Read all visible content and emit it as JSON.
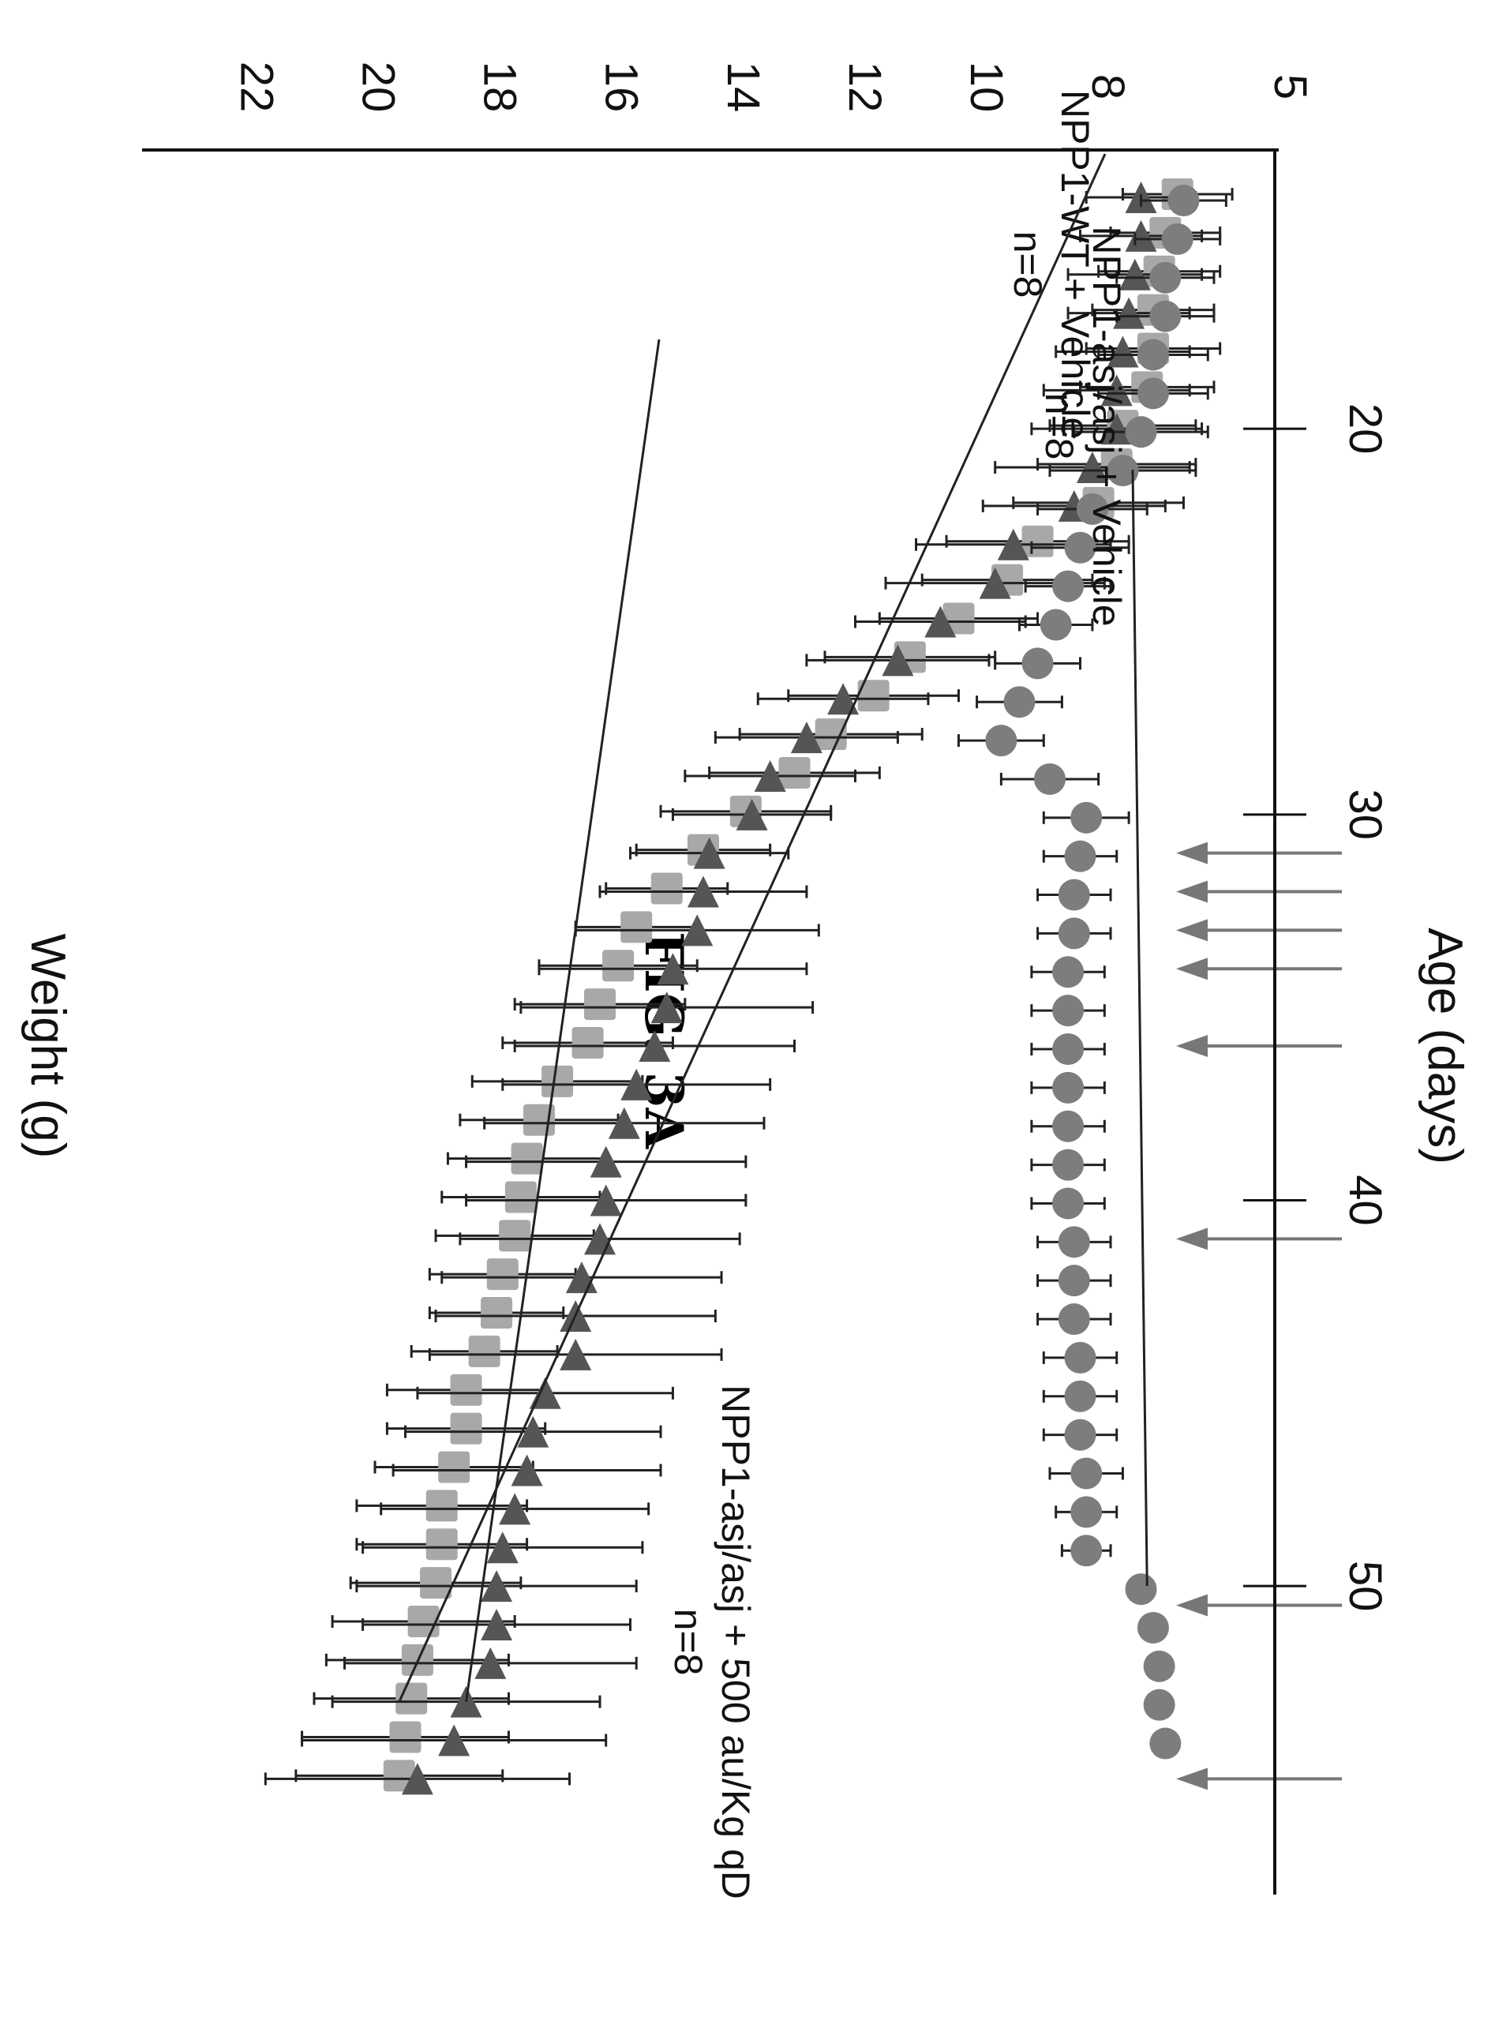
{
  "figure": {
    "label": "FIG. 3A"
  },
  "chart_data": {
    "type": "scatter",
    "xlabel": "Age (days)",
    "ylabel": "Weight (g)",
    "xlim": [
      14,
      58
    ],
    "ylim": [
      5,
      23.5
    ],
    "xticks": [
      20,
      30,
      40,
      50
    ],
    "yticks": [
      5,
      8,
      10,
      12,
      14,
      16,
      18,
      20,
      22
    ],
    "grid": false,
    "legend": "none",
    "series": [
      {
        "marker": "square",
        "color": "#a8a8a8",
        "x": [
          14,
          15,
          16,
          17,
          18,
          19,
          20,
          21,
          22,
          23,
          24,
          25,
          26,
          27,
          28,
          29,
          30,
          31,
          32,
          33,
          34,
          35,
          36,
          37,
          38,
          39,
          40,
          41,
          42,
          43,
          44,
          45,
          46,
          47,
          48,
          49,
          50,
          51,
          52,
          53,
          54,
          55
        ],
        "y": [
          6.6,
          6.8,
          6.9,
          7.0,
          7.0,
          7.1,
          7.5,
          7.6,
          7.9,
          8.9,
          9.4,
          10.2,
          11.0,
          11.6,
          12.3,
          12.9,
          13.7,
          14.4,
          15.0,
          15.5,
          15.8,
          16.1,
          16.3,
          16.8,
          17.1,
          17.3,
          17.4,
          17.5,
          17.7,
          17.8,
          18.0,
          18.3,
          18.3,
          18.5,
          18.7,
          18.7,
          18.8,
          19.0,
          19.1,
          19.2,
          19.3,
          19.4
        ],
        "err": [
          0.9,
          0.9,
          1.0,
          1.0,
          1.1,
          1.1,
          1.2,
          1.3,
          1.4,
          1.5,
          1.4,
          1.3,
          1.4,
          1.4,
          1.5,
          1.4,
          1.4,
          1.1,
          1.0,
          1.0,
          1.3,
          1.4,
          1.4,
          1.4,
          1.3,
          1.3,
          1.3,
          1.3,
          1.2,
          1.1,
          1.2,
          1.3,
          1.3,
          1.3,
          1.4,
          1.4,
          1.4,
          1.5,
          1.5,
          1.6,
          1.7,
          1.7
        ]
      },
      {
        "marker": "triangle",
        "color": "#555555",
        "x": [
          14,
          15,
          16,
          17,
          18,
          19,
          20,
          21,
          22,
          23,
          24,
          25,
          26,
          27,
          28,
          29,
          30,
          31,
          32,
          33,
          34,
          35,
          36,
          37,
          38,
          39,
          40,
          41,
          42,
          43,
          44,
          45,
          46,
          47,
          48,
          49,
          50,
          51,
          52,
          53,
          54,
          55
        ],
        "y": [
          7.2,
          7.2,
          7.3,
          7.4,
          7.5,
          7.6,
          7.6,
          8.0,
          8.3,
          9.3,
          9.6,
          10.5,
          11.2,
          12.1,
          12.7,
          13.3,
          13.6,
          14.3,
          14.4,
          14.5,
          14.9,
          15.0,
          15.2,
          15.5,
          15.7,
          16.0,
          16.0,
          16.1,
          16.4,
          16.5,
          16.5,
          17.0,
          17.2,
          17.3,
          17.5,
          17.7,
          17.8,
          17.8,
          17.9,
          18.3,
          18.5,
          19.1
        ],
        "err": [
          0.9,
          1.0,
          1.1,
          1.0,
          1.1,
          1.2,
          1.4,
          1.6,
          1.5,
          1.6,
          1.8,
          1.4,
          1.5,
          1.4,
          1.5,
          1.4,
          1.3,
          1.3,
          1.7,
          2.0,
          2.2,
          2.4,
          2.3,
          2.2,
          2.3,
          2.3,
          2.3,
          2.3,
          2.3,
          2.3,
          2.4,
          2.1,
          2.1,
          2.2,
          2.2,
          2.3,
          2.3,
          2.2,
          2.4,
          2.2,
          2.5,
          2.5
        ]
      },
      {
        "marker": "circle",
        "color": "#7d7d7d",
        "x": [
          14,
          15,
          16,
          17,
          18,
          19,
          20,
          21,
          22,
          23,
          24,
          25,
          26,
          27,
          28,
          29,
          30,
          31,
          32,
          33,
          34,
          35,
          36,
          37,
          38,
          39,
          40,
          41,
          42,
          43,
          44,
          45,
          46,
          47,
          48,
          49,
          50,
          51,
          52,
          53,
          54
        ],
        "y": [
          6.5,
          6.6,
          6.8,
          6.8,
          7.0,
          7.0,
          7.2,
          7.5,
          8.0,
          8.2,
          8.4,
          8.6,
          8.9,
          9.2,
          9.5,
          8.7,
          8.1,
          8.2,
          8.3,
          8.3,
          8.4,
          8.4,
          8.4,
          8.4,
          8.4,
          8.4,
          8.4,
          8.3,
          8.3,
          8.3,
          8.2,
          8.2,
          8.2,
          8.1,
          8.1,
          8.1,
          7.2,
          7.0,
          6.9,
          6.9,
          6.8
        ],
        "err": [
          0.7,
          0.7,
          0.8,
          0.8,
          0.9,
          0.9,
          1.1,
          1.2,
          0.9,
          0.8,
          0.7,
          0.6,
          0.7,
          0.7,
          0.7,
          0.8,
          0.7,
          0.6,
          0.6,
          0.6,
          0.6,
          0.6,
          0.6,
          0.6,
          0.6,
          0.6,
          0.6,
          0.6,
          0.6,
          0.6,
          0.6,
          0.6,
          0.6,
          0.6,
          0.5,
          0.4,
          0,
          0,
          0,
          0,
          0
        ]
      }
    ],
    "dose_arrows_x": [
      31,
      32,
      33,
      34,
      36,
      41,
      50.5,
      55
    ],
    "annotations": [
      {
        "text": "NPP1-WT + Vehicle",
        "text2": "n=8",
        "target": [
          53,
          19.4
        ]
      },
      {
        "text": "NPP1-asj/asj + 500 au/Kg qD",
        "text2": "n=8",
        "target": [
          53,
          18.3
        ]
      },
      {
        "text": "NPP1-asj/asj + Vehicle",
        "text2": "n=8",
        "target": [
          50,
          7.1
        ]
      }
    ]
  }
}
